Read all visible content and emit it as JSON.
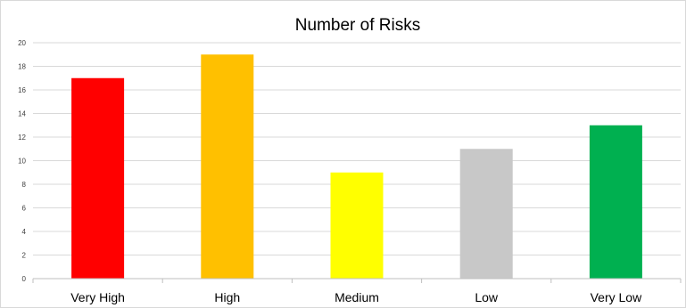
{
  "chart_data": {
    "type": "bar",
    "title": "Number of Risks",
    "xlabel": "",
    "ylabel": "",
    "categories": [
      "Very High",
      "High",
      "Medium",
      "Low",
      "Very Low"
    ],
    "values": [
      17,
      19,
      9,
      11,
      13
    ],
    "colors": [
      "#ff0000",
      "#ffc000",
      "#ffff00",
      "#c8c8c8",
      "#00b050"
    ],
    "ylim": [
      0,
      20
    ],
    "yticks": [
      0,
      2,
      4,
      6,
      8,
      10,
      12,
      14,
      16,
      18,
      20
    ],
    "grid": true,
    "legend": "none"
  }
}
